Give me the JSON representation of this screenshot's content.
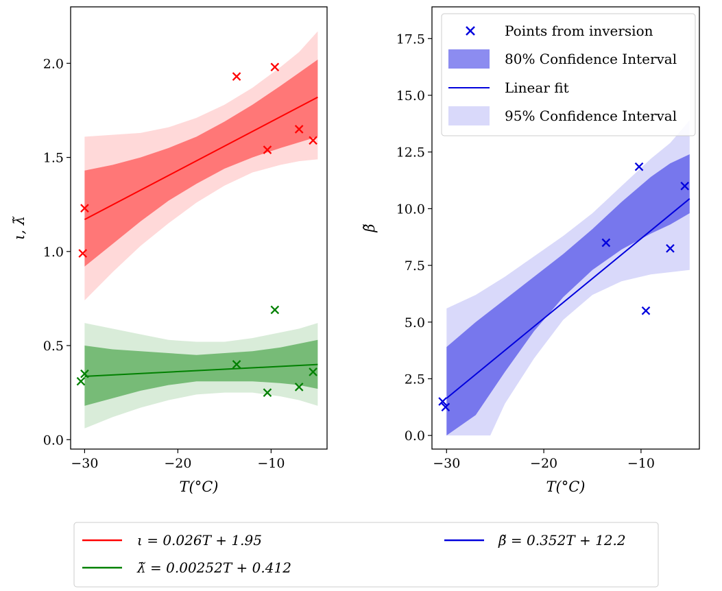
{
  "chart_data": [
    {
      "type": "scatter",
      "xlabel": "T(°C)",
      "ylabel": "ι, λ̃",
      "xlim": [
        -31.5,
        -4
      ],
      "ylim": [
        -0.05,
        2.3
      ],
      "xticks": [
        -30,
        -20,
        -10
      ],
      "xtick_labels": [
        "−30",
        "−20",
        "−10"
      ],
      "yticks": [
        0.0,
        0.5,
        1.0,
        1.5,
        2.0
      ],
      "ytick_labels": [
        "0.0",
        "0.5",
        "1.0",
        "1.5",
        "2.0"
      ],
      "grid": false,
      "series": [
        {
          "name": "ι = 0.026T + 1.95",
          "color": "#ff0000",
          "points": [
            [
              -30.2,
              0.99
            ],
            [
              -30.0,
              1.23
            ],
            [
              -13.7,
              1.93
            ],
            [
              -10.4,
              1.54
            ],
            [
              -9.6,
              1.98
            ],
            [
              -7.0,
              1.65
            ],
            [
              -5.5,
              1.59
            ]
          ],
          "fit": {
            "slope": 0.026,
            "intercept": 1.95
          },
          "band80": [
            [
              -30,
              0.92,
              1.43
            ],
            [
              -27,
              1.04,
              1.46
            ],
            [
              -24,
              1.16,
              1.5
            ],
            [
              -21,
              1.27,
              1.55
            ],
            [
              -18,
              1.36,
              1.61
            ],
            [
              -15,
              1.44,
              1.69
            ],
            [
              -12,
              1.5,
              1.78
            ],
            [
              -9,
              1.55,
              1.88
            ],
            [
              -7,
              1.58,
              1.95
            ],
            [
              -5,
              1.61,
              2.02
            ]
          ],
          "band95": [
            [
              -30,
              0.74,
              1.61
            ],
            [
              -27,
              0.89,
              1.62
            ],
            [
              -24,
              1.03,
              1.63
            ],
            [
              -21,
              1.15,
              1.66
            ],
            [
              -18,
              1.26,
              1.71
            ],
            [
              -15,
              1.35,
              1.78
            ],
            [
              -12,
              1.42,
              1.87
            ],
            [
              -9,
              1.46,
              1.98
            ],
            [
              -7,
              1.48,
              2.06
            ],
            [
              -5,
              1.49,
              2.17
            ]
          ]
        },
        {
          "name": "λ̃ = 0.00252T + 0.412",
          "color": "#008000",
          "points": [
            [
              -30.4,
              0.31
            ],
            [
              -30.0,
              0.35
            ],
            [
              -13.7,
              0.4
            ],
            [
              -10.4,
              0.25
            ],
            [
              -9.6,
              0.69
            ],
            [
              -7.0,
              0.28
            ],
            [
              -5.5,
              0.36
            ]
          ],
          "fit": {
            "slope": 0.00252,
            "intercept": 0.412
          },
          "band80": [
            [
              -30,
              0.18,
              0.5
            ],
            [
              -27,
              0.22,
              0.48
            ],
            [
              -24,
              0.26,
              0.47
            ],
            [
              -21,
              0.29,
              0.46
            ],
            [
              -18,
              0.31,
              0.45
            ],
            [
              -15,
              0.31,
              0.46
            ],
            [
              -12,
              0.31,
              0.47
            ],
            [
              -9,
              0.3,
              0.49
            ],
            [
              -7,
              0.29,
              0.51
            ],
            [
              -5,
              0.27,
              0.53
            ]
          ],
          "band95": [
            [
              -30,
              0.06,
              0.62
            ],
            [
              -27,
              0.12,
              0.59
            ],
            [
              -24,
              0.17,
              0.56
            ],
            [
              -21,
              0.21,
              0.53
            ],
            [
              -18,
              0.24,
              0.52
            ],
            [
              -15,
              0.25,
              0.52
            ],
            [
              -12,
              0.25,
              0.54
            ],
            [
              -9,
              0.23,
              0.57
            ],
            [
              -7,
              0.21,
              0.59
            ],
            [
              -5,
              0.18,
              0.62
            ]
          ]
        }
      ]
    },
    {
      "type": "scatter",
      "xlabel": "T(°C)",
      "ylabel": "β̃",
      "xlim": [
        -31.5,
        -4
      ],
      "ylim": [
        -0.6,
        18.9
      ],
      "xticks": [
        -30,
        -20,
        -10
      ],
      "xtick_labels": [
        "−30",
        "−20",
        "−10"
      ],
      "yticks": [
        0.0,
        2.5,
        5.0,
        7.5,
        10.0,
        12.5,
        15.0,
        17.5
      ],
      "ytick_labels": [
        "0.0",
        "2.5",
        "5.0",
        "7.5",
        "10.0",
        "12.5",
        "15.0",
        "17.5"
      ],
      "grid": false,
      "legend_position": "upper-right",
      "legend": {
        "points_label": "Points from inversion",
        "ci80_label": "80% Confidence Interval",
        "fit_label": "Linear fit",
        "ci95_label": "95% Confidence Interval"
      },
      "series": [
        {
          "name": "β̃ = 0.352T + 12.2",
          "color": "#0000dd",
          "points": [
            [
              -30.4,
              1.5
            ],
            [
              -30.1,
              1.25
            ],
            [
              -13.6,
              8.5
            ],
            [
              -10.2,
              11.85
            ],
            [
              -9.5,
              5.5
            ],
            [
              -7.0,
              8.25
            ],
            [
              -5.5,
              11.0
            ]
          ],
          "fit": {
            "slope": 0.352,
            "intercept": 12.2
          },
          "band80": [
            [
              -30,
              0.0,
              3.9
            ],
            [
              -27,
              0.9,
              5.0
            ],
            [
              -24,
              2.8,
              6.0
            ],
            [
              -21,
              4.6,
              7.0
            ],
            [
              -18,
              6.1,
              8.0
            ],
            [
              -15,
              7.3,
              9.1
            ],
            [
              -12,
              8.2,
              10.3
            ],
            [
              -9,
              8.9,
              11.4
            ],
            [
              -7,
              9.3,
              12.0
            ],
            [
              -5,
              9.8,
              12.4
            ]
          ],
          "band95": [
            [
              -30,
              0.0,
              5.6
            ],
            [
              -27,
              0.0,
              6.2
            ],
            [
              -25.5,
              0.0,
              6.6
            ],
            [
              -24,
              1.4,
              7.0
            ],
            [
              -21,
              3.4,
              7.9
            ],
            [
              -18,
              5.1,
              8.8
            ],
            [
              -15,
              6.2,
              9.8
            ],
            [
              -12,
              6.8,
              11.0
            ],
            [
              -9,
              7.1,
              12.2
            ],
            [
              -7,
              7.2,
              12.9
            ],
            [
              -5,
              7.3,
              13.9
            ]
          ]
        }
      ]
    }
  ],
  "bottom_legend": [
    {
      "color": "#ff0000",
      "label": "ι = 0.026T + 1.95"
    },
    {
      "color": "#008000",
      "label": "λ̃ = 0.00252T + 0.412"
    },
    {
      "color": "#0000dd",
      "label": "β̃ = 0.352T + 12.2"
    }
  ]
}
